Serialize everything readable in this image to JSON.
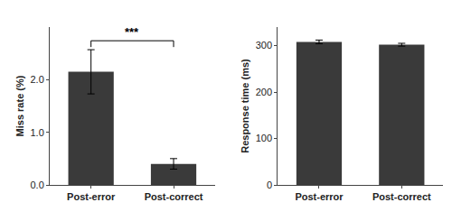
{
  "chart_data": [
    {
      "type": "bar",
      "categories": [
        "Post-error",
        "Post-correct"
      ],
      "values": [
        2.15,
        0.4
      ],
      "errors": [
        0.42,
        0.1
      ],
      "ylabel": "Miss rate (%)",
      "ylim": [
        0,
        3.0
      ],
      "yticks": [
        {
          "value": 0,
          "label": "0.0"
        },
        {
          "value": 1.0,
          "label": "1.0"
        },
        {
          "value": 2.0,
          "label": "2.0"
        }
      ],
      "color": "#3a3a3a",
      "grid": false,
      "annotations": [
        "***"
      ]
    },
    {
      "type": "bar",
      "categories": [
        "Post-error",
        "Post-correct"
      ],
      "values": [
        308,
        302
      ],
      "errors": [
        4.0,
        3.0
      ],
      "ylabel": "Response time (ms)",
      "ylim": [
        0,
        340
      ],
      "yticks": [
        0,
        100,
        200,
        300
      ],
      "color": "#3a3a3a",
      "grid": false
    }
  ]
}
